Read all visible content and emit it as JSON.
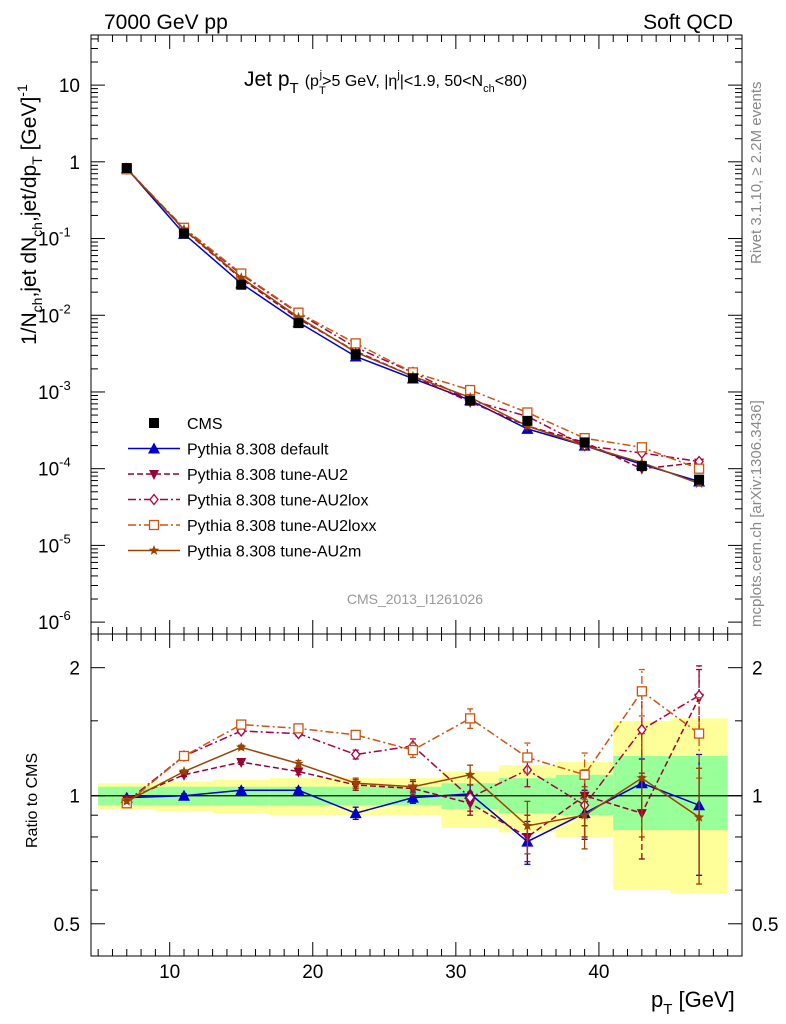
{
  "header": {
    "left": "7000 GeV pp",
    "right": "Soft QCD"
  },
  "side_labels": {
    "rivet": "Rivet 3.1.10, ≥ 2.2M events",
    "mcplots": "mcplots.cern.ch [arXiv:1306.3436]"
  },
  "analysis_id": "CMS_2013_I1261026",
  "title": {
    "main": "Jet p",
    "main_sub": "T",
    "cond_open": "(p",
    "cond_sub": "T",
    "cond_sup": "j",
    "cond_a": ">5 GeV, |η",
    "cond_sup2": "j",
    "cond_b": "|<1.9, 50<N",
    "cond_sub2": "ch",
    "cond_c": "<80)"
  },
  "axes": {
    "ylabel_upper": "1/N_ch,jet dN_ch,jet/dp_T [GeV]^-1",
    "ylabel_lower": "Ratio to CMS",
    "xlabel": "p_T [GeV]"
  },
  "colors": {
    "data": "#000000",
    "default": "#0000cc",
    "AU2": "#990033",
    "AU2lox": "#aa0044",
    "AU2loxx": "#cc5511",
    "AU2m": "#994400",
    "band_inner": "#99ff99",
    "band_outer": "#ffff99"
  },
  "chart_data": [
    {
      "type": "line",
      "name": "main",
      "x_scale": "linear",
      "y_scale": "log",
      "xlim": [
        4.5,
        50
      ],
      "ylim": [
        7e-07,
        45
      ],
      "y_ticks": [
        "10^-6",
        "10^-5",
        "10^-4",
        "10^-3",
        "10^-2",
        "10^-1",
        "1",
        "10"
      ],
      "x": [
        7,
        11,
        15,
        19,
        23,
        27,
        31,
        35,
        39,
        43,
        47
      ],
      "data": {
        "name": "CMS",
        "values": [
          0.83,
          0.116,
          0.025,
          0.0079,
          0.0031,
          0.00151,
          0.00077,
          0.00042,
          0.00022,
          0.000108,
          7.2e-05
        ]
      },
      "series": [
        {
          "name": "Pythia 8.308 default",
          "key": "default",
          "marker": "triangle-up",
          "dash": "solid",
          "values": [
            0.82,
            0.115,
            0.026,
            0.0081,
            0.0029,
            0.0015,
            0.00078,
            0.00033,
            0.0002,
            0.000114,
            6.8e-05
          ]
        },
        {
          "name": "Pythia 8.308 tune-AU2",
          "key": "AU2",
          "marker": "triangle-down",
          "dash": "dashed",
          "values": [
            0.82,
            0.13,
            0.03,
            0.009,
            0.0034,
            0.0016,
            0.00074,
            0.00036,
            0.00022,
            0.0001,
            0.00012
          ]
        },
        {
          "name": "Pythia 8.308 tune-AU2lox",
          "key": "AU2lox",
          "marker": "diamond-open",
          "dash": "dashdot",
          "values": [
            0.81,
            0.135,
            0.034,
            0.0106,
            0.0038,
            0.0018,
            0.00078,
            0.00048,
            0.0002,
            0.00016,
            0.000124
          ]
        },
        {
          "name": "Pythia 8.308 tune-AU2loxx",
          "key": "AU2loxx",
          "marker": "square-open",
          "dash": "dashdot",
          "values": [
            0.8,
            0.138,
            0.035,
            0.0108,
            0.0043,
            0.0018,
            0.00106,
            0.00054,
            0.00025,
            0.00019,
            0.0001
          ]
        },
        {
          "name": "Pythia 8.308 tune-AU2m",
          "key": "AU2m",
          "marker": "star",
          "dash": "solid",
          "values": [
            0.81,
            0.132,
            0.031,
            0.0094,
            0.0033,
            0.0016,
            0.00085,
            0.00036,
            0.0002,
            0.00012,
            6.4e-05
          ]
        }
      ]
    },
    {
      "type": "line",
      "name": "ratio",
      "x_scale": "linear",
      "y_scale": "log",
      "xlim": [
        4.5,
        50
      ],
      "ylim": [
        0.42,
        2.4
      ],
      "y_ticks": [
        "0.5",
        "1",
        "2"
      ],
      "x_ticks": [
        "10",
        "20",
        "30",
        "40"
      ],
      "bands": [
        {
          "xlo": 5,
          "xhi": 9,
          "inner": [
            0.95,
            1.05
          ],
          "outer": [
            0.93,
            1.07
          ]
        },
        {
          "xlo": 9,
          "xhi": 13,
          "inner": [
            0.95,
            1.05
          ],
          "outer": [
            0.92,
            1.08
          ]
        },
        {
          "xlo": 13,
          "xhi": 17,
          "inner": [
            0.95,
            1.05
          ],
          "outer": [
            0.91,
            1.09
          ]
        },
        {
          "xlo": 17,
          "xhi": 21,
          "inner": [
            0.95,
            1.05
          ],
          "outer": [
            0.9,
            1.1
          ]
        },
        {
          "xlo": 21,
          "xhi": 25,
          "inner": [
            0.95,
            1.05
          ],
          "outer": [
            0.9,
            1.1
          ]
        },
        {
          "xlo": 25,
          "xhi": 29,
          "inner": [
            0.95,
            1.05
          ],
          "outer": [
            0.9,
            1.1
          ]
        },
        {
          "xlo": 29,
          "xhi": 33,
          "inner": [
            0.93,
            1.07
          ],
          "outer": [
            0.84,
            1.14
          ]
        },
        {
          "xlo": 33,
          "xhi": 37,
          "inner": [
            0.91,
            1.1
          ],
          "outer": [
            0.82,
            1.18
          ]
        },
        {
          "xlo": 37,
          "xhi": 41,
          "inner": [
            0.9,
            1.12
          ],
          "outer": [
            0.8,
            1.2
          ]
        },
        {
          "xlo": 41,
          "xhi": 45,
          "inner": [
            0.83,
            1.24
          ],
          "outer": [
            0.6,
            1.5
          ]
        },
        {
          "xlo": 45,
          "xhi": 49,
          "inner": [
            0.83,
            1.24
          ],
          "outer": [
            0.59,
            1.52
          ]
        }
      ],
      "series": [
        {
          "name": "Pythia 8.308 default",
          "key": "default",
          "values": [
            0.99,
            1.0,
            1.03,
            1.03,
            0.91,
            0.99,
            1.01,
            0.78,
            0.91,
            1.07,
            0.95
          ],
          "err": [
            0.01,
            0.01,
            0.015,
            0.015,
            0.03,
            0.03,
            0.05,
            0.09,
            0.12,
            0.15,
            0.3
          ]
        },
        {
          "name": "Pythia 8.308 tune-AU2",
          "key": "AU2",
          "values": [
            0.98,
            1.12,
            1.2,
            1.14,
            1.06,
            1.04,
            0.96,
            0.8,
            1.0,
            0.91,
            1.7
          ],
          "err": [
            0.01,
            0.01,
            0.015,
            0.02,
            0.03,
            0.04,
            0.06,
            0.1,
            0.15,
            0.2,
            0.28
          ]
        },
        {
          "name": "Pythia 8.308 tune-AU2lox",
          "key": "AU2lox",
          "values": [
            0.97,
            1.24,
            1.42,
            1.4,
            1.25,
            1.31,
            0.99,
            1.15,
            0.95,
            1.43,
            1.72
          ],
          "err": [
            0.01,
            0.01,
            0.02,
            0.02,
            0.03,
            0.05,
            0.07,
            0.1,
            0.15,
            0.3,
            0.3
          ]
        },
        {
          "name": "Pythia 8.308 tune-AU2loxx",
          "key": "AU2loxx",
          "values": [
            0.96,
            1.24,
            1.47,
            1.44,
            1.39,
            1.28,
            1.52,
            1.23,
            1.12,
            1.76,
            1.4
          ],
          "err": [
            0.01,
            0.015,
            0.02,
            0.02,
            0.03,
            0.05,
            0.08,
            0.1,
            0.14,
            0.22,
            0.3
          ]
        },
        {
          "name": "Pythia 8.308 tune-AU2m",
          "key": "AU2m",
          "values": [
            0.97,
            1.14,
            1.3,
            1.19,
            1.07,
            1.05,
            1.12,
            0.85,
            0.9,
            1.1,
            0.89
          ],
          "err": [
            0.01,
            0.01,
            0.015,
            0.02,
            0.03,
            0.04,
            0.06,
            0.12,
            0.15,
            0.3,
            0.27
          ]
        }
      ]
    }
  ]
}
